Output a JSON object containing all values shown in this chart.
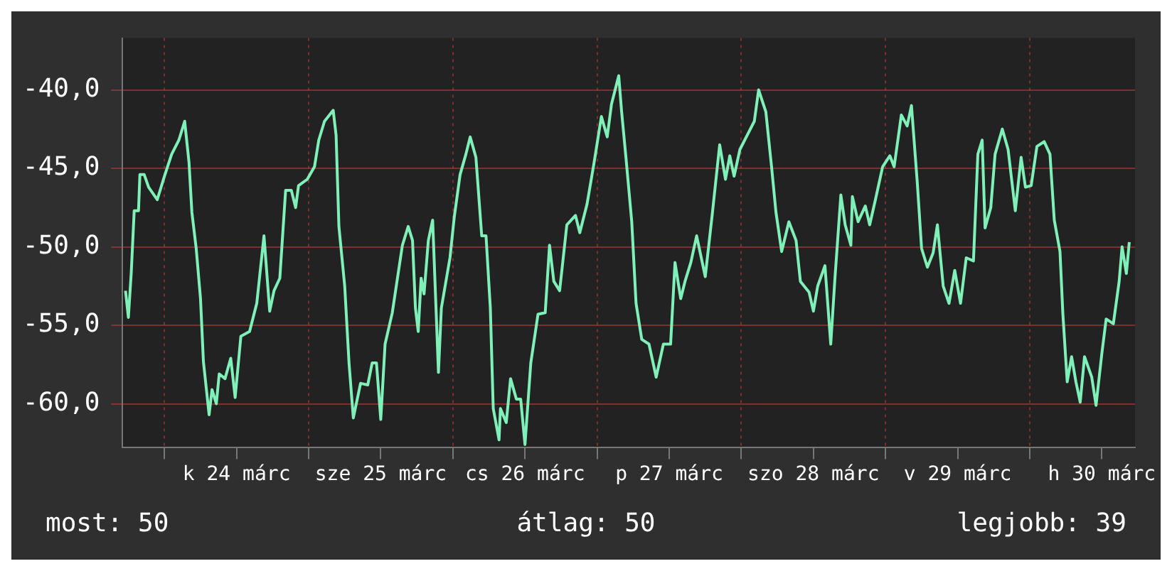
{
  "chart_data": {
    "type": "line",
    "x": [
      "--03-23T17:31",
      "--03-23T18:00",
      "--03-23T18:29",
      "--03-23T18:58",
      "--03-23T19:41",
      "--03-23T19:55",
      "--03-23T20:38",
      "--03-23T21:22",
      "--03-23T22:48",
      "--03-24T00:00",
      "--03-24T01:12",
      "--03-24T02:24",
      "--03-24T03:22",
      "--03-24T04:05",
      "--03-24T04:34",
      "--03-24T05:17",
      "--03-24T06:00",
      "--03-24T06:29",
      "--03-24T07:26",
      "--03-24T07:55",
      "--03-24T08:38",
      "--03-24T09:07",
      "--03-24T10:05",
      "--03-24T11:02",
      "--03-24T11:46",
      "--03-24T12:43",
      "--03-24T14:10",
      "--03-24T15:22",
      "--03-24T16:34",
      "--03-24T17:31",
      "--03-24T18:14",
      "--03-24T19:12",
      "--03-24T20:10",
      "--03-24T21:07",
      "--03-24T21:50",
      "--03-24T22:19",
      "--03-24T23:46",
      "--03-25T00:58",
      "--03-25T01:41",
      "--03-25T02:38",
      "--03-25T04:05",
      "--03-25T04:34",
      "--03-25T05:02",
      "--03-25T06:00",
      "--03-25T06:43",
      "--03-25T07:26",
      "--03-25T08:38",
      "--03-25T09:50",
      "--03-25T10:34",
      "--03-25T11:17",
      "--03-25T12:00",
      "--03-25T12:43",
      "--03-25T13:55",
      "--03-25T15:36",
      "--03-25T16:34",
      "--03-25T17:17",
      "--03-25T17:46",
      "--03-25T18:14",
      "--03-25T18:43",
      "--03-25T19:12",
      "--03-25T19:55",
      "--03-25T20:38",
      "--03-25T21:36",
      "--03-25T22:05",
      "--03-25T23:31",
      "--03-26T00:14",
      "--03-26T01:12",
      "--03-26T02:10",
      "--03-26T02:53",
      "--03-26T03:50",
      "--03-26T04:48",
      "--03-26T05:31",
      "--03-26T06:14",
      "--03-26T06:43",
      "--03-26T07:41",
      "--03-26T07:55",
      "--03-26T08:53",
      "--03-26T09:36",
      "--03-26T10:34",
      "--03-26T11:17",
      "--03-26T12:00",
      "--03-26T12:58",
      "--03-26T14:10",
      "--03-26T15:22",
      "--03-26T16:05",
      "--03-26T16:48",
      "--03-26T17:46",
      "--03-26T18:58",
      "--03-26T20:24",
      "--03-26T21:07",
      "--03-26T22:19",
      "--03-26T23:31",
      "--03-27T00:43",
      "--03-27T01:41",
      "--03-27T02:24",
      "--03-27T03:36",
      "--03-27T04:05",
      "--03-27T04:48",
      "--03-27T05:46",
      "--03-27T06:29",
      "--03-27T07:26",
      "--03-27T08:38",
      "--03-27T09:50",
      "--03-27T11:02",
      "--03-27T12:14",
      "--03-27T12:58",
      "--03-27T13:55",
      "--03-27T14:38",
      "--03-27T15:36",
      "--03-27T16:34",
      "--03-27T18:00",
      "--03-27T19:12",
      "--03-27T20:24",
      "--03-27T21:22",
      "--03-27T22:05",
      "--03-27T22:48",
      "--03-27T23:46",
      "--03-28T00:58",
      "--03-28T02:10",
      "--03-28T02:53",
      "--03-28T04:05",
      "--03-28T05:02",
      "--03-28T05:46",
      "--03-28T06:43",
      "--03-28T07:55",
      "--03-28T09:07",
      "--03-28T09:50",
      "--03-28T11:17",
      "--03-28T12:00",
      "--03-28T12:43",
      "--03-28T13:55",
      "--03-28T14:53",
      "--03-28T15:36",
      "--03-28T16:34",
      "--03-28T17:17",
      "--03-28T18:14",
      "--03-28T18:29",
      "--03-28T19:26",
      "--03-28T20:38",
      "--03-28T21:22",
      "--03-28T22:19",
      "--03-28T23:31",
      "--03-29T00:43",
      "--03-29T01:26",
      "--03-29T02:38",
      "--03-29T03:36",
      "--03-29T04:19",
      "--03-29T05:17",
      "--03-29T06:00",
      "--03-29T06:58",
      "--03-29T07:55",
      "--03-29T08:38",
      "--03-29T09:36",
      "--03-29T10:34",
      "--03-29T11:31",
      "--03-29T12:29",
      "--03-29T13:26",
      "--03-29T14:38",
      "--03-29T15:22",
      "--03-29T16:05",
      "--03-29T16:34",
      "--03-29T17:31",
      "--03-29T18:14",
      "--03-29T19:26",
      "--03-29T20:24",
      "--03-29T21:36",
      "--03-29T22:34",
      "--03-29T23:17",
      "--03-30T00:14",
      "--03-30T01:12",
      "--03-30T02:24",
      "--03-30T03:22",
      "--03-30T04:05",
      "--03-30T05:02",
      "--03-30T05:31",
      "--03-30T06:14",
      "--03-30T06:58",
      "--03-30T07:41",
      "--03-30T08:24",
      "--03-30T09:07",
      "--03-30T10:19",
      "--03-30T11:02",
      "--03-30T12:00",
      "--03-30T12:43",
      "--03-30T13:55",
      "--03-30T14:53",
      "--03-30T15:22",
      "--03-30T16:05",
      "--03-30T16:34"
    ],
    "series": [
      {
        "color": "#7ff0b8",
        "values": [
          -52.8,
          -54.5,
          -51.6,
          -47.7,
          -47.7,
          -45.4,
          -45.4,
          -46.2,
          -47.0,
          -45.5,
          -44.1,
          -43.2,
          -42.0,
          -44.6,
          -47.8,
          -50.1,
          -53.3,
          -57.3,
          -60.7,
          -59.1,
          -60.0,
          -58.1,
          -58.4,
          -57.1,
          -59.6,
          -55.7,
          -55.4,
          -53.6,
          -49.3,
          -54.1,
          -52.8,
          -52.0,
          -46.4,
          -46.4,
          -47.5,
          -46.1,
          -45.7,
          -44.9,
          -43.2,
          -42.0,
          -41.3,
          -42.9,
          -48.7,
          -52.5,
          -57.4,
          -60.9,
          -58.7,
          -58.8,
          -57.4,
          -57.4,
          -61.0,
          -56.2,
          -54.2,
          -49.9,
          -48.7,
          -49.6,
          -53.9,
          -55.4,
          -52.0,
          -53.0,
          -49.6,
          -48.3,
          -58.0,
          -53.9,
          -50.7,
          -48.1,
          -45.4,
          -44.1,
          -43.0,
          -44.3,
          -49.3,
          -49.3,
          -53.9,
          -60.3,
          -62.3,
          -60.3,
          -61.2,
          -58.4,
          -59.7,
          -59.7,
          -62.6,
          -57.4,
          -54.3,
          -54.2,
          -49.9,
          -52.2,
          -52.8,
          -48.6,
          -48.0,
          -49.1,
          -47.3,
          -44.6,
          -41.7,
          -43.0,
          -40.9,
          -39.1,
          -41.4,
          -44.3,
          -48.4,
          -53.6,
          -55.9,
          -56.2,
          -58.3,
          -56.2,
          -56.2,
          -51.0,
          -53.3,
          -52.2,
          -51.0,
          -49.3,
          -51.9,
          -47.8,
          -43.5,
          -45.7,
          -44.2,
          -45.5,
          -43.8,
          -42.9,
          -42.0,
          -40.0,
          -41.4,
          -44.9,
          -47.8,
          -50.3,
          -48.4,
          -49.6,
          -52.2,
          -52.9,
          -54.1,
          -52.5,
          -51.2,
          -56.2,
          -51.9,
          -46.7,
          -48.6,
          -49.9,
          -46.8,
          -48.4,
          -47.4,
          -48.6,
          -47.0,
          -44.9,
          -44.2,
          -44.9,
          -41.6,
          -42.3,
          -41.0,
          -45.9,
          -50.1,
          -51.3,
          -50.4,
          -48.6,
          -52.5,
          -53.6,
          -51.5,
          -53.6,
          -50.7,
          -50.9,
          -44.1,
          -43.2,
          -48.8,
          -47.5,
          -44.1,
          -42.5,
          -43.8,
          -47.7,
          -44.3,
          -46.2,
          -46.1,
          -43.6,
          -43.3,
          -44.1,
          -48.3,
          -50.3,
          -54.3,
          -58.6,
          -57.0,
          -58.6,
          -59.9,
          -57.0,
          -58.3,
          -60.1,
          -56.8,
          -54.6,
          -54.9,
          -52.2,
          -50.0,
          -51.7,
          -49.7
        ]
      }
    ],
    "xlim": [
      "--03-23T17:02",
      "--03-30T17:31"
    ],
    "xticks": [
      {
        "value": "--03-24",
        "label": null
      },
      {
        "value": "--03-24T12:00",
        "label": "k 24 márc"
      },
      {
        "value": "--03-25",
        "label": null
      },
      {
        "value": "--03-25T12:00",
        "label": "sze 25 márc"
      },
      {
        "value": "--03-26",
        "label": null
      },
      {
        "value": "--03-26T12:00",
        "label": "cs 26 márc"
      },
      {
        "value": "--03-27",
        "label": null
      },
      {
        "value": "--03-27T12:00",
        "label": "p 27 márc"
      },
      {
        "value": "--03-28",
        "label": null
      },
      {
        "value": "--03-28T12:00",
        "label": "szo 28 márc"
      },
      {
        "value": "--03-29",
        "label": null
      },
      {
        "value": "--03-29T12:00",
        "label": "v 29 márc"
      },
      {
        "value": "--03-30",
        "label": null
      },
      {
        "value": "--03-30T12:00",
        "label": "h 30 márc"
      }
    ],
    "ylim": [
      -62.8,
      -36.7
    ],
    "yticks": [
      {
        "value": -60,
        "label": "-60,0"
      },
      {
        "value": -55,
        "label": "-55,0"
      },
      {
        "value": -50,
        "label": "-50,0"
      },
      {
        "value": -45,
        "label": "-45,0"
      },
      {
        "value": -40,
        "label": "-40,0"
      }
    ],
    "grid": true,
    "annotations": [
      "most: 50",
      "átlag: 50",
      "legjobb: 39"
    ]
  }
}
